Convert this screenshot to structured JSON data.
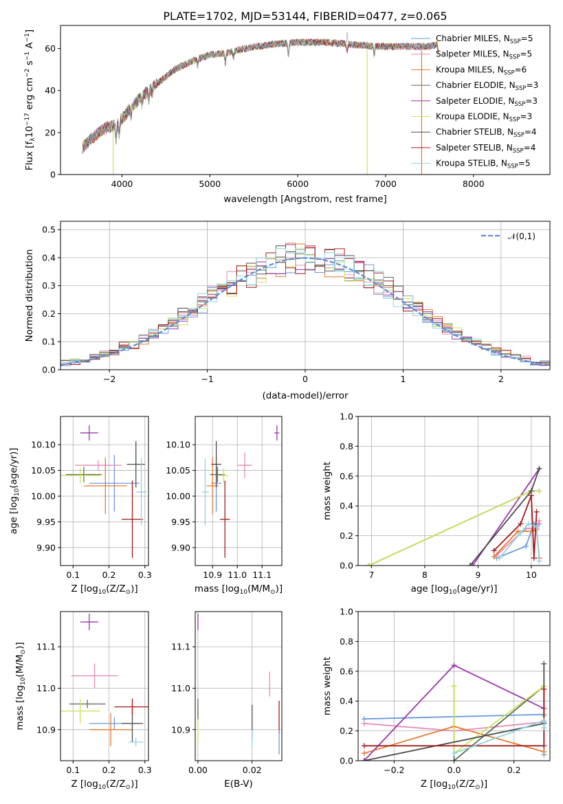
{
  "palette": [
    "#6a9adb",
    "#e98bb8",
    "#e6792e",
    "#5b6e56",
    "#9a35a8",
    "#cbe35a",
    "#4b4b4b",
    "#a31a1a",
    "#8ed3e0"
  ],
  "chart_data": [
    {
      "id": "spectrum",
      "type": "line",
      "title": "PLATE=1702, MJD=53144, FIBERID=0477, z=0.065",
      "xlabel": "wavelength [Angstrom, rest frame]",
      "ylabel": "Flux [f",
      "ylabel_sub": "λ",
      "ylabel_rest": "10",
      "ylabel_sup": "−17",
      "ylabel_units": " erg cm",
      "ylabel_sup2": "−2",
      "ylabel_s": " s",
      "ylabel_sup3": "−1",
      "ylabel_A": " A",
      "ylabel_sup4": "−1",
      "ylabel_end": "]",
      "xlim": [
        3300,
        8870
      ],
      "ylim": [
        0,
        71
      ],
      "xticks": [
        4000,
        5000,
        6000,
        7000,
        8000
      ],
      "yticks": [
        0,
        20,
        40,
        60
      ],
      "legend_position": "upper right",
      "continuum_knots": [
        [
          3550,
          13
        ],
        [
          3650,
          17
        ],
        [
          3800,
          22
        ],
        [
          3950,
          24
        ],
        [
          4050,
          29
        ],
        [
          4150,
          34
        ],
        [
          4300,
          40
        ],
        [
          4450,
          45
        ],
        [
          4600,
          50
        ],
        [
          4800,
          54
        ],
        [
          5000,
          57
        ],
        [
          5200,
          58
        ],
        [
          5400,
          60
        ],
        [
          5700,
          62
        ],
        [
          6000,
          63
        ],
        [
          6300,
          63
        ],
        [
          6600,
          62
        ],
        [
          6900,
          61
        ],
        [
          7200,
          61
        ],
        [
          7500,
          61
        ],
        [
          7600,
          62
        ]
      ],
      "absorption_lines": [
        [
          3933,
          7
        ],
        [
          3968,
          6
        ],
        [
          4102,
          3
        ],
        [
          4227,
          3
        ],
        [
          4304,
          5
        ],
        [
          4340,
          3
        ],
        [
          4861,
          3
        ],
        [
          5175,
          5
        ],
        [
          5270,
          3
        ],
        [
          5893,
          6
        ],
        [
          6563,
          3
        ],
        [
          6870,
          4
        ],
        [
          7600,
          3
        ]
      ],
      "emission_lines": [
        [
          6563,
          9
        ]
      ],
      "spikes": [
        [
          3900,
          0
        ],
        [
          6790,
          0
        ],
        [
          7410,
          0
        ]
      ],
      "series": [
        {
          "name": "Chabrier MILES",
          "nssp": "5"
        },
        {
          "name": "Salpeter MILES",
          "nssp": "5"
        },
        {
          "name": "Kroupa MILES",
          "nssp": "6"
        },
        {
          "name": "Chabrier ELODIE",
          "nssp": "3"
        },
        {
          "name": "Salpeter ELODIE",
          "nssp": "3"
        },
        {
          "name": "Kroupa ELODIE",
          "nssp": "3"
        },
        {
          "name": "Chabrier STELIB",
          "nssp": "4"
        },
        {
          "name": "Salpeter STELIB",
          "nssp": "4"
        },
        {
          "name": "Kroupa STELIB",
          "nssp": "5"
        }
      ],
      "legend_nssp_prefix": "N",
      "legend_nssp_sub": "SSP"
    },
    {
      "id": "residuals",
      "type": "step",
      "xlabel": "(data-model)/error",
      "ylabel": "Normed distribution",
      "xlim": [
        -2.5,
        2.5
      ],
      "ylim": [
        0,
        0.53
      ],
      "xticks": [
        -2,
        -1,
        0,
        1,
        2
      ],
      "yticks": [
        0.0,
        0.1,
        0.2,
        0.3,
        0.4,
        0.5
      ],
      "grid": true,
      "legend_label": "𝒩(0,1)",
      "legend_position": "upper right",
      "bin_width": 0.1
    },
    {
      "id": "age-vs-Z",
      "type": "errorbar",
      "xlabel": "Z [log",
      "xlabel_sub": "10",
      "xlabel_rest": "(Z/Z",
      "xlabel_sub2": "⊙",
      "xlabel_end": ")]",
      "ylabel": "age  [log",
      "ylabel_sub": "10",
      "ylabel_rest": "(age/yr)]",
      "xlim": [
        0.065,
        0.31
      ],
      "ylim": [
        9.865,
        10.155
      ],
      "xticks": [
        0.1,
        0.2,
        0.3
      ],
      "yticks": [
        9.9,
        9.95,
        10.0,
        10.05,
        10.1
      ],
      "grid": true,
      "points": [
        {
          "x": 0.215,
          "y": 10.025,
          "xerr": 0.07,
          "yerr": 0.055,
          "c": 0
        },
        {
          "x": 0.17,
          "y": 10.06,
          "xerr": 0.065,
          "yerr": 0.01,
          "c": 1
        },
        {
          "x": 0.19,
          "y": 10.02,
          "xerr": 0.06,
          "yerr": 0.055,
          "c": 2
        },
        {
          "x": 0.13,
          "y": 10.042,
          "xerr": 0.05,
          "yerr": 0.015,
          "c": 3
        },
        {
          "x": 0.145,
          "y": 10.123,
          "xerr": 0.025,
          "yerr": 0.015,
          "c": 4
        },
        {
          "x": 0.12,
          "y": 10.04,
          "xerr": 0.055,
          "yerr": 0.015,
          "c": 5
        },
        {
          "x": 0.275,
          "y": 10.062,
          "xerr": 0.025,
          "yerr": 0.045,
          "c": 6
        },
        {
          "x": 0.265,
          "y": 9.955,
          "xerr": 0.03,
          "yerr": 0.075,
          "c": 7
        },
        {
          "x": 0.29,
          "y": 10.008,
          "xerr": 0.015,
          "yerr": 0.065,
          "c": 8
        }
      ]
    },
    {
      "id": "age-vs-mass",
      "type": "errorbar",
      "xlabel": "mass [log",
      "xlabel_sub": "10",
      "xlabel_rest": "(M/M",
      "xlabel_sub2": "⊙",
      "xlabel_end": ")]",
      "xlim": [
        10.83,
        11.18
      ],
      "ylim": [
        9.865,
        10.155
      ],
      "xticks": [
        10.9,
        11.0,
        11.1
      ],
      "yticks": [
        9.9,
        9.95,
        10.0,
        10.05,
        10.1
      ],
      "grid": true,
      "points": [
        {
          "x": 10.915,
          "y": 10.025,
          "xerr": 0.02,
          "yerr": 0.055,
          "c": 0
        },
        {
          "x": 11.03,
          "y": 10.06,
          "xerr": 0.03,
          "yerr": 0.025,
          "c": 1
        },
        {
          "x": 10.9,
          "y": 10.02,
          "xerr": 0.025,
          "yerr": 0.055,
          "c": 2
        },
        {
          "x": 10.92,
          "y": 10.042,
          "xerr": 0.03,
          "yerr": 0.015,
          "c": 3
        },
        {
          "x": 11.16,
          "y": 10.123,
          "xerr": 0.01,
          "yerr": 0.015,
          "c": 4
        },
        {
          "x": 10.945,
          "y": 10.04,
          "xerr": 0.02,
          "yerr": 0.015,
          "c": 5
        },
        {
          "x": 10.915,
          "y": 10.062,
          "xerr": 0.02,
          "yerr": 0.045,
          "c": 6
        },
        {
          "x": 10.95,
          "y": 9.955,
          "xerr": 0.02,
          "yerr": 0.075,
          "c": 7
        },
        {
          "x": 10.87,
          "y": 10.008,
          "xerr": 0.015,
          "yerr": 0.065,
          "c": 8
        }
      ]
    },
    {
      "id": "weight-vs-age",
      "type": "line",
      "xlabel": "age  [log",
      "xlabel_sub": "10",
      "xlabel_rest": "(age/yr)]",
      "ylabel": "mass weight",
      "xlim": [
        6.75,
        10.35
      ],
      "ylim": [
        0,
        1
      ],
      "xticks": [
        7,
        8,
        9,
        10
      ],
      "yticks": [
        0.0,
        0.2,
        0.4,
        0.6,
        0.8,
        1.0
      ],
      "grid": true,
      "series": [
        {
          "c": 0,
          "pts": [
            [
              9.35,
              0.05
            ],
            [
              9.9,
              0.13
            ],
            [
              10.05,
              0.28
            ],
            [
              10.15,
              0.28
            ]
          ]
        },
        {
          "c": 1,
          "pts": [
            [
              9.35,
              0.07
            ],
            [
              9.9,
              0.25
            ],
            [
              10.1,
              0.25
            ],
            [
              10.15,
              0.3
            ]
          ]
        },
        {
          "c": 2,
          "pts": [
            [
              9.3,
              0.06
            ],
            [
              9.75,
              0.23
            ],
            [
              10.0,
              0.23
            ],
            [
              10.1,
              0.24
            ],
            [
              10.15,
              0.05
            ]
          ]
        },
        {
          "c": 3,
          "pts": [
            [
              6.95,
              0.0
            ],
            [
              10.0,
              0.5
            ],
            [
              10.15,
              0.5
            ]
          ]
        },
        {
          "c": 4,
          "pts": [
            [
              8.9,
              0.0
            ],
            [
              10.15,
              0.65
            ]
          ]
        },
        {
          "c": 5,
          "pts": [
            [
              6.95,
              0.0
            ],
            [
              10.0,
              0.5
            ],
            [
              10.15,
              0.5
            ]
          ]
        },
        {
          "c": 6,
          "pts": [
            [
              8.85,
              0.0
            ],
            [
              10.0,
              0.5
            ],
            [
              10.15,
              0.65
            ]
          ]
        },
        {
          "c": 7,
          "pts": [
            [
              9.3,
              0.1
            ],
            [
              9.8,
              0.28
            ],
            [
              10.0,
              0.47
            ],
            [
              10.05,
              0.05
            ],
            [
              10.1,
              0.36
            ]
          ]
        },
        {
          "c": 8,
          "pts": [
            [
              9.4,
              0.05
            ],
            [
              9.8,
              0.22
            ],
            [
              9.95,
              0.28
            ],
            [
              10.1,
              0.26
            ],
            [
              10.15,
              0.03
            ]
          ]
        }
      ]
    },
    {
      "id": "mass-vs-Z",
      "type": "errorbar",
      "xlabel": "Z [log",
      "xlabel_sub": "10",
      "xlabel_rest": "(Z/Z",
      "xlabel_sub2": "⊙",
      "xlabel_end": ")]",
      "ylabel": "mass [log",
      "ylabel_sub": "10",
      "ylabel_rest": "(M/M",
      "ylabel_sub2": "⊙",
      "ylabel_end": ")]",
      "xlim": [
        0.065,
        0.31
      ],
      "ylim": [
        10.825,
        11.185
      ],
      "xticks": [
        0.1,
        0.2,
        0.3
      ],
      "yticks": [
        10.9,
        11.0,
        11.1
      ],
      "grid": true,
      "points": [
        {
          "x": 0.215,
          "y": 10.915,
          "xerr": 0.07,
          "yerr": 0.015,
          "c": 0
        },
        {
          "x": 0.16,
          "y": 11.03,
          "xerr": 0.065,
          "yerr": 0.03,
          "c": 1
        },
        {
          "x": 0.205,
          "y": 10.9,
          "xerr": 0.06,
          "yerr": 0.04,
          "c": 2
        },
        {
          "x": 0.14,
          "y": 10.962,
          "xerr": 0.05,
          "yerr": 0.01,
          "c": 3
        },
        {
          "x": 0.145,
          "y": 11.16,
          "xerr": 0.025,
          "yerr": 0.02,
          "c": 4
        },
        {
          "x": 0.12,
          "y": 10.945,
          "xerr": 0.055,
          "yerr": 0.03,
          "c": 5
        },
        {
          "x": 0.265,
          "y": 10.915,
          "xerr": 0.03,
          "yerr": 0.045,
          "c": 6
        },
        {
          "x": 0.265,
          "y": 10.955,
          "xerr": 0.05,
          "yerr": 0.02,
          "c": 7
        },
        {
          "x": 0.275,
          "y": 10.87,
          "xerr": 0.02,
          "yerr": 0.01,
          "c": 8
        }
      ]
    },
    {
      "id": "mass-vs-ebv",
      "type": "errorbar",
      "xlabel": "E(B-V)",
      "xlim": [
        -0.001,
        0.031
      ],
      "ylim": [
        10.825,
        11.185
      ],
      "xticks": [
        0.0,
        0.02
      ],
      "yticks": [
        10.9,
        11.0,
        11.1
      ],
      "grid": true,
      "points": [
        {
          "x": 0.0,
          "y": 11.16,
          "xerr": 0,
          "yerr": 0.02,
          "c": 4
        },
        {
          "x": 0.0,
          "y": 10.91,
          "xerr": 0,
          "yerr": 0.045,
          "c": 5
        },
        {
          "x": 0.0,
          "y": 10.95,
          "xerr": 0,
          "yerr": 0.025,
          "c": 3
        },
        {
          "x": 0.02,
          "y": 10.92,
          "xerr": 0,
          "yerr": 0.04,
          "c": 6
        },
        {
          "x": 0.02,
          "y": 10.88,
          "xerr": 0,
          "yerr": 0.02,
          "c": 8
        },
        {
          "x": 0.0265,
          "y": 11.01,
          "xerr": 0,
          "yerr": 0.03,
          "c": 1
        },
        {
          "x": 0.03,
          "y": 10.93,
          "xerr": 0,
          "yerr": 0.04,
          "c": 7
        },
        {
          "x": 0.03,
          "y": 10.87,
          "xerr": 0,
          "yerr": 0.03,
          "c": 0
        }
      ]
    },
    {
      "id": "weight-vs-Z",
      "type": "line",
      "xlabel": "Z [log",
      "xlabel_sub": "10",
      "xlabel_rest": "(Z/Z",
      "xlabel_sub2": "⊙",
      "xlabel_end": ")]",
      "ylabel": "mass weight",
      "xlim": [
        -0.32,
        0.32
      ],
      "ylim": [
        0,
        1
      ],
      "xticks": [
        -0.2,
        0.0,
        0.2
      ],
      "yticks": [
        0.0,
        0.2,
        0.4,
        0.6,
        0.8,
        1.0
      ],
      "grid": true,
      "series": [
        {
          "c": 0,
          "pts": [
            [
              -0.3,
              0.28
            ],
            [
              0.3,
              0.31
            ],
            [
              0.3,
              0.04
            ]
          ]
        },
        {
          "c": 1,
          "pts": [
            [
              -0.3,
              0.25
            ],
            [
              0.0,
              0.2
            ],
            [
              0.3,
              0.26
            ]
          ]
        },
        {
          "c": 2,
          "pts": [
            [
              -0.3,
              0.05
            ],
            [
              0.0,
              0.23
            ],
            [
              0.3,
              0.06
            ]
          ]
        },
        {
          "c": 3,
          "pts": [
            [
              0.0,
              0.5
            ],
            [
              0.0,
              0.0
            ],
            [
              0.3,
              0.5
            ]
          ]
        },
        {
          "c": 4,
          "pts": [
            [
              -0.3,
              0.0
            ],
            [
              0.0,
              0.64
            ],
            [
              0.3,
              0.35
            ]
          ]
        },
        {
          "c": 5,
          "pts": [
            [
              0.0,
              0.5
            ],
            [
              0.0,
              0.05
            ],
            [
              0.3,
              0.5
            ],
            [
              0.3,
              0.3
            ]
          ]
        },
        {
          "c": 6,
          "pts": [
            [
              -0.3,
              0.0
            ],
            [
              0.3,
              0.25
            ],
            [
              0.3,
              0.65
            ]
          ]
        },
        {
          "c": 7,
          "pts": [
            [
              -0.3,
              0.1
            ],
            [
              0.3,
              0.1
            ],
            [
              0.3,
              0.48
            ]
          ]
        },
        {
          "c": 8,
          "pts": [
            [
              0.0,
              0.05
            ],
            [
              0.3,
              0.27
            ],
            [
              0.3,
              0.22
            ]
          ]
        }
      ]
    }
  ]
}
